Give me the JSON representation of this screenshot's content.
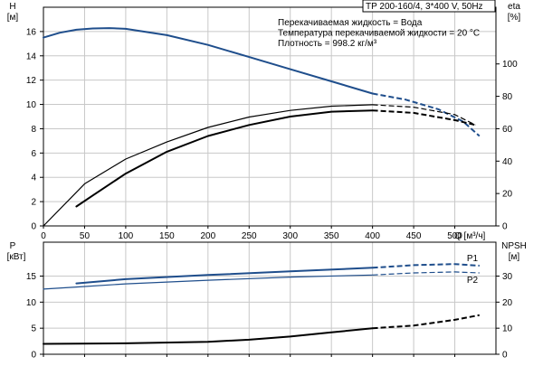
{
  "chart_data": [
    {
      "id": "head-eff",
      "type": "line",
      "info": {
        "title": "TP 200-160/4, 3*400 V, 50Hz",
        "lines": [
          "Перекачиваемая жидкость = Вода",
          "Температура перекачиваемой жидкости = 20 °C",
          "Плотность = 998.2 кг/м³"
        ]
      },
      "x_axis": {
        "label": "Q [м³/ч]",
        "range": [
          0,
          550
        ],
        "ticks": [
          0,
          50,
          100,
          150,
          200,
          250,
          300,
          350,
          400,
          450,
          500
        ]
      },
      "y_left": {
        "label": "H",
        "unit": "[м]",
        "range": [
          0,
          18
        ],
        "ticks": [
          0,
          2,
          4,
          6,
          8,
          10,
          12,
          14,
          16
        ]
      },
      "y_right": {
        "label": "eta",
        "unit": "[%]",
        "range": [
          0,
          135
        ],
        "ticks": [
          0,
          20,
          40,
          60,
          80,
          100
        ]
      },
      "series": [
        {
          "axis": "left",
          "color": "#1f4e8c",
          "width": 2,
          "solid_x": [
            0,
            20,
            40,
            60,
            80,
            100,
            150,
            200,
            250,
            300,
            350,
            400
          ],
          "solid_y": [
            15.5,
            15.9,
            16.15,
            16.25,
            16.28,
            16.22,
            15.7,
            14.9,
            13.9,
            12.9,
            11.9,
            10.9
          ],
          "dash_x": [
            400,
            440,
            480,
            510,
            530
          ],
          "dash_y": [
            10.9,
            10.4,
            9.6,
            8.6,
            7.4
          ]
        },
        {
          "axis": "right",
          "color": "#000000",
          "width": 1.2,
          "solid_x": [
            0,
            50,
            100,
            150,
            200,
            250,
            300,
            350,
            400
          ],
          "solid_y": [
            0,
            26,
            41.3,
            51.8,
            60.8,
            67.2,
            71.3,
            73.9,
            74.8
          ],
          "dash_x": [
            400,
            450,
            500,
            525
          ],
          "dash_y": [
            74.8,
            73.3,
            68.7,
            62.3
          ]
        },
        {
          "axis": "right",
          "color": "#000000",
          "width": 2,
          "solid_x": [
            40,
            60,
            100,
            150,
            200,
            250,
            300,
            350,
            400
          ],
          "solid_y": [
            12,
            18.8,
            32.3,
            45.8,
            55.5,
            62.3,
            67.5,
            70.5,
            71.3
          ],
          "dash_x": [
            400,
            450,
            500,
            525
          ],
          "dash_y": [
            71.3,
            69.8,
            65.3,
            62.3
          ]
        }
      ]
    },
    {
      "id": "power-npsh",
      "type": "line",
      "x_axis": {
        "range": [
          0,
          550
        ],
        "ticks": [
          0,
          50,
          100,
          150,
          200,
          250,
          300,
          350,
          400,
          450,
          500
        ]
      },
      "y_left": {
        "label": "P",
        "unit": "[кВт]",
        "range": [
          0,
          21.5
        ],
        "ticks": [
          0,
          5,
          10,
          15
        ]
      },
      "y_right": {
        "label": "NPSH",
        "unit": "[м]",
        "range": [
          0,
          43
        ],
        "ticks": [
          0,
          10,
          20,
          30
        ]
      },
      "series": [
        {
          "name": "P1",
          "axis": "left",
          "color": "#1f4e8c",
          "width": 2,
          "solid_x": [
            40,
            100,
            200,
            300,
            400
          ],
          "solid_y": [
            13.6,
            14.4,
            15.2,
            15.9,
            16.6
          ],
          "dash_x": [
            400,
            450,
            500,
            530
          ],
          "dash_y": [
            16.6,
            17.1,
            17.3,
            17.0
          ]
        },
        {
          "name": "P2",
          "axis": "left",
          "color": "#1f4e8c",
          "width": 1.2,
          "solid_x": [
            0,
            40,
            100,
            200,
            300,
            400
          ],
          "solid_y": [
            12.5,
            12.9,
            13.5,
            14.2,
            14.8,
            15.2
          ],
          "dash_x": [
            400,
            450,
            500,
            530
          ],
          "dash_y": [
            15.2,
            15.6,
            15.8,
            15.6
          ]
        },
        {
          "axis": "right",
          "color": "#000000",
          "width": 2,
          "solid_x": [
            0,
            100,
            200,
            250,
            300,
            350,
            400
          ],
          "solid_y": [
            4,
            4.2,
            4.8,
            5.6,
            6.8,
            8.4,
            10
          ],
          "dash_x": [
            400,
            450,
            500,
            530
          ],
          "dash_y": [
            10,
            11,
            13.2,
            15
          ]
        }
      ]
    }
  ]
}
